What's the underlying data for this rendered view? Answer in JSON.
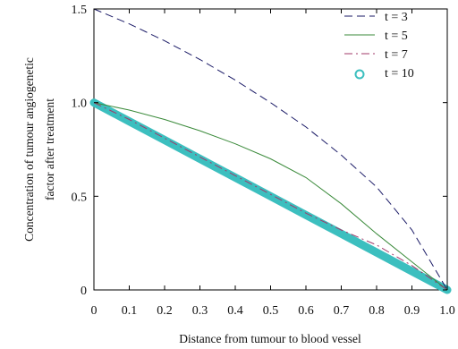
{
  "chart_data": {
    "type": "line",
    "title": "",
    "xlabel": "Distance from tumour to blood vessel",
    "ylabel_lines": [
      "Concentration of tumour angiogenetic",
      "factor after treatment"
    ],
    "xlim": [
      0,
      1.0
    ],
    "ylim": [
      0,
      1.5
    ],
    "x_ticks": [
      0,
      0.1,
      0.2,
      0.3,
      0.4,
      0.5,
      0.6,
      0.7,
      0.8,
      0.9,
      1.0
    ],
    "x_tick_labels": [
      "0",
      "0.1",
      "0.2",
      "0.3",
      "0.4",
      "0.5",
      "0.6",
      "0.7",
      "0.8",
      "0.9",
      "1.0"
    ],
    "y_ticks": [
      0,
      0.5,
      1.0,
      1.5
    ],
    "y_tick_labels": [
      "0",
      "0.5",
      "1.0",
      "1.5"
    ],
    "grid": false,
    "legend": "top-right",
    "series": [
      {
        "name": "t = 3",
        "style": "dashed",
        "color": "#1a1a66",
        "x": [
          0,
          0.1,
          0.2,
          0.3,
          0.4,
          0.5,
          0.6,
          0.7,
          0.8,
          0.9,
          1.0
        ],
        "y": [
          1.5,
          1.42,
          1.33,
          1.23,
          1.12,
          1.0,
          0.87,
          0.72,
          0.55,
          0.32,
          0.0
        ]
      },
      {
        "name": "t = 5",
        "style": "solid",
        "color": "#3a8a3a",
        "x": [
          0,
          0.1,
          0.2,
          0.3,
          0.4,
          0.5,
          0.6,
          0.7,
          0.8,
          0.9,
          1.0
        ],
        "y": [
          1.0,
          0.96,
          0.91,
          0.85,
          0.78,
          0.7,
          0.6,
          0.46,
          0.3,
          0.15,
          0.0
        ]
      },
      {
        "name": "t = 7",
        "style": "dashdot",
        "color": "#a03a6a",
        "x": [
          0,
          0.1,
          0.2,
          0.3,
          0.4,
          0.5,
          0.6,
          0.7,
          0.8,
          0.9,
          1.0
        ],
        "y": [
          1.0,
          0.91,
          0.81,
          0.71,
          0.61,
          0.51,
          0.41,
          0.32,
          0.24,
          0.13,
          0.0
        ]
      },
      {
        "name": "t = 10",
        "style": "markers",
        "color": "#3cbfbf",
        "x": [
          0,
          0.1,
          0.2,
          0.3,
          0.4,
          0.5,
          0.6,
          0.7,
          0.8,
          0.9,
          1.0
        ],
        "y": [
          1.0,
          0.9,
          0.8,
          0.7,
          0.6,
          0.5,
          0.4,
          0.3,
          0.2,
          0.1,
          0.0
        ]
      }
    ]
  }
}
